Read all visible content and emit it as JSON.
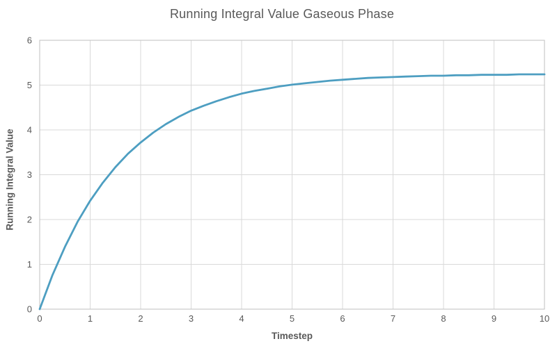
{
  "chart": {
    "title": "Running Integral Value Gaseous Phase",
    "xlabel": "Timestep",
    "ylabel": "Running Integral Value"
  },
  "chart_data": {
    "type": "line",
    "title": "Running Integral Value Gaseous Phase",
    "xlabel": "Timestep",
    "ylabel": "Running Integral Value",
    "xlim": [
      0,
      10
    ],
    "ylim": [
      0,
      6
    ],
    "x_ticks": [
      0,
      1,
      2,
      3,
      4,
      5,
      6,
      7,
      8,
      9,
      10
    ],
    "y_ticks": [
      0,
      1,
      2,
      3,
      4,
      5,
      6
    ],
    "grid": true,
    "legend_position": "none",
    "colors": {
      "line": "#4D9EC1",
      "grid": "#D9D9D9",
      "border": "#BFBFBF",
      "text": "#595959",
      "background": "#FFFFFF"
    },
    "series": [
      {
        "name": "Running Integral Value",
        "x": [
          0,
          0.25,
          0.5,
          0.75,
          1,
          1.25,
          1.5,
          1.75,
          2,
          2.25,
          2.5,
          2.75,
          3,
          3.25,
          3.5,
          3.75,
          4,
          4.25,
          4.5,
          4.75,
          5,
          5.25,
          5.5,
          5.75,
          6,
          6.25,
          6.5,
          6.75,
          7,
          7.25,
          7.5,
          7.75,
          8,
          8.25,
          8.5,
          8.75,
          9,
          9.25,
          9.5,
          9.75,
          10
        ],
        "y": [
          0.0,
          0.75,
          1.39,
          1.95,
          2.42,
          2.82,
          3.17,
          3.47,
          3.72,
          3.94,
          4.13,
          4.29,
          4.43,
          4.54,
          4.64,
          4.73,
          4.81,
          4.87,
          4.92,
          4.97,
          5.01,
          5.04,
          5.07,
          5.1,
          5.12,
          5.14,
          5.16,
          5.17,
          5.18,
          5.19,
          5.2,
          5.21,
          5.21,
          5.22,
          5.22,
          5.23,
          5.23,
          5.23,
          5.24,
          5.24,
          5.24
        ]
      }
    ]
  }
}
